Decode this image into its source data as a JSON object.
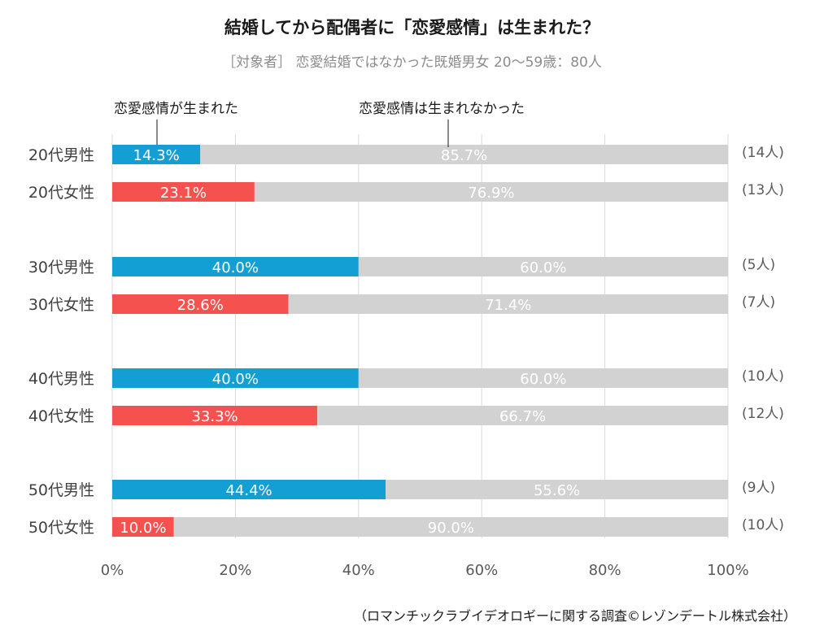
{
  "title": "結婚してから配偶者に「恋愛感情」は生まれた？",
  "subtitle": "［対象者］ 恋愛結婚ではなかった既婚男女 20～59歳：80人",
  "footer": "（ロマンチックラブイデオロギーに関する調査©レゾンデートル株式会社）",
  "chart_data": {
    "type": "bar",
    "orientation": "horizontal",
    "stacked": true,
    "percent_stacked": true,
    "categories": [
      "20代男性",
      "20代女性",
      "30代男性",
      "30代女性",
      "40代男性",
      "40代女性",
      "50代男性",
      "50代女性"
    ],
    "series": [
      {
        "name": "恋愛感情が生まれた",
        "values": [
          14.3,
          23.1,
          40.0,
          28.6,
          40.0,
          33.3,
          44.4,
          10.0
        ],
        "labels": [
          "14.3%",
          "23.1%",
          "40.0%",
          "28.6%",
          "40.0%",
          "33.3%",
          "44.4%",
          "10.0%"
        ]
      },
      {
        "name": "恋愛感情は生まれなかった",
        "values": [
          85.7,
          76.9,
          60.0,
          71.4,
          60.0,
          66.7,
          55.6,
          90.0
        ],
        "labels": [
          "85.7%",
          "76.9%",
          "60.0%",
          "71.4%",
          "60.0%",
          "66.7%",
          "55.6%",
          "90.0%"
        ]
      }
    ],
    "counts": [
      "(14人)",
      "(13人)",
      "(5人)",
      "(7人)",
      "(10人)",
      "(12人)",
      "(9人)",
      "(10人)"
    ],
    "xlim": [
      0,
      100
    ],
    "x_ticks": [
      "0%",
      "20%",
      "40%",
      "60%",
      "80%",
      "100%"
    ],
    "grid": true,
    "colors": {
      "male": "#139fd4",
      "female": "#f5514f",
      "rest": "#d2d2d2",
      "grid": "#d9d9d9"
    }
  }
}
